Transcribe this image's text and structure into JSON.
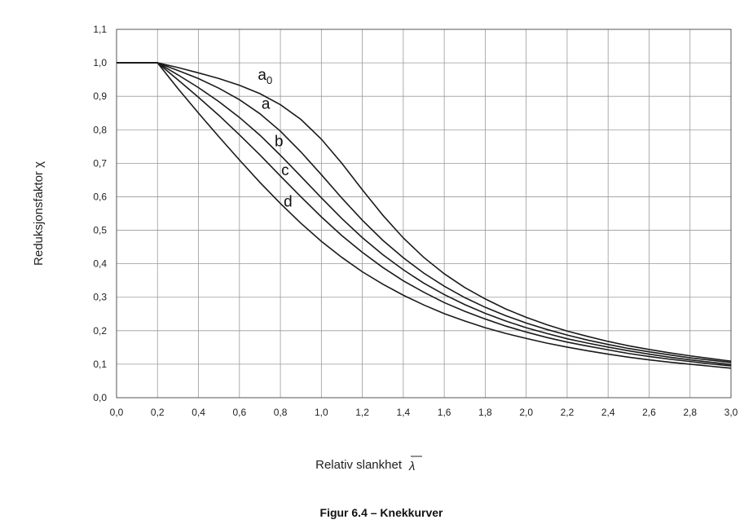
{
  "chart_data": {
    "type": "line",
    "title": "",
    "caption": "Figur 6.4 – Knekkurver",
    "xlabel": "Relativ slankhet",
    "xlabel_symbol": "λ",
    "ylabel": "Reduksjonsfaktor χ",
    "xlim": [
      0.0,
      3.0
    ],
    "ylim": [
      0.0,
      1.1
    ],
    "grid": true,
    "x_ticks": [
      0.0,
      0.2,
      0.4,
      0.6,
      0.8,
      1.0,
      1.2,
      1.4,
      1.6,
      1.8,
      2.0,
      2.2,
      2.4,
      2.6,
      2.8,
      3.0
    ],
    "x_tick_labels": [
      "0,0",
      "0,2",
      "0,4",
      "0,6",
      "0,8",
      "1,0",
      "1,2",
      "1,4",
      "1,6",
      "1,8",
      "2,0",
      "2,2",
      "2,4",
      "2,6",
      "2,8",
      "3,0"
    ],
    "y_ticks": [
      0.0,
      0.1,
      0.2,
      0.3,
      0.4,
      0.5,
      0.6,
      0.7,
      0.8,
      0.9,
      1.0,
      1.1
    ],
    "y_tick_labels": [
      "0,0",
      "0,1",
      "0,2",
      "0,3",
      "0,4",
      "0,5",
      "0,6",
      "0,7",
      "0,8",
      "0,9",
      "1,0",
      "1,1"
    ],
    "x": [
      0.0,
      0.1,
      0.2,
      0.3,
      0.4,
      0.5,
      0.6,
      0.7,
      0.8,
      0.9,
      1.0,
      1.1,
      1.2,
      1.3,
      1.4,
      1.5,
      1.6,
      1.7,
      1.8,
      1.9,
      2.0,
      2.1,
      2.2,
      2.3,
      2.4,
      2.5,
      2.6,
      2.7,
      2.8,
      2.9,
      3.0
    ],
    "series": [
      {
        "name": "a",
        "subscript": "0",
        "values": [
          1.0,
          1.0,
          1.0,
          0.986,
          0.97,
          0.953,
          0.933,
          0.908,
          0.875,
          0.831,
          0.772,
          0.7,
          0.621,
          0.545,
          0.477,
          0.419,
          0.37,
          0.329,
          0.295,
          0.265,
          0.24,
          0.218,
          0.199,
          0.183,
          0.168,
          0.155,
          0.144,
          0.134,
          0.125,
          0.117,
          0.109
        ]
      },
      {
        "name": "a",
        "subscript": "",
        "values": [
          1.0,
          1.0,
          1.0,
          0.977,
          0.953,
          0.924,
          0.89,
          0.848,
          0.796,
          0.734,
          0.666,
          0.596,
          0.53,
          0.47,
          0.418,
          0.372,
          0.333,
          0.299,
          0.27,
          0.245,
          0.223,
          0.204,
          0.187,
          0.172,
          0.159,
          0.147,
          0.137,
          0.128,
          0.119,
          0.112,
          0.105
        ]
      },
      {
        "name": "b",
        "subscript": "",
        "values": [
          1.0,
          1.0,
          1.0,
          0.964,
          0.926,
          0.884,
          0.837,
          0.784,
          0.724,
          0.661,
          0.597,
          0.535,
          0.478,
          0.427,
          0.382,
          0.342,
          0.308,
          0.278,
          0.252,
          0.229,
          0.209,
          0.192,
          0.176,
          0.163,
          0.151,
          0.14,
          0.13,
          0.121,
          0.113,
          0.106,
          0.099
        ]
      },
      {
        "name": "c",
        "subscript": "",
        "values": [
          1.0,
          1.0,
          1.0,
          0.949,
          0.897,
          0.843,
          0.785,
          0.725,
          0.662,
          0.6,
          0.54,
          0.484,
          0.434,
          0.389,
          0.349,
          0.315,
          0.284,
          0.258,
          0.235,
          0.214,
          0.196,
          0.18,
          0.166,
          0.154,
          0.143,
          0.132,
          0.123,
          0.115,
          0.108,
          0.101,
          0.095
        ]
      },
      {
        "name": "d",
        "subscript": "",
        "values": [
          1.0,
          1.0,
          1.0,
          0.923,
          0.85,
          0.779,
          0.71,
          0.643,
          0.58,
          0.521,
          0.467,
          0.419,
          0.376,
          0.339,
          0.306,
          0.277,
          0.251,
          0.229,
          0.209,
          0.192,
          0.177,
          0.163,
          0.151,
          0.14,
          0.13,
          0.121,
          0.113,
          0.106,
          0.1,
          0.094,
          0.088
        ]
      }
    ],
    "colors": {
      "curve": "#1a1a1a",
      "grid": "#9a9a9a",
      "frame": "#555555",
      "text": "#222222"
    }
  }
}
